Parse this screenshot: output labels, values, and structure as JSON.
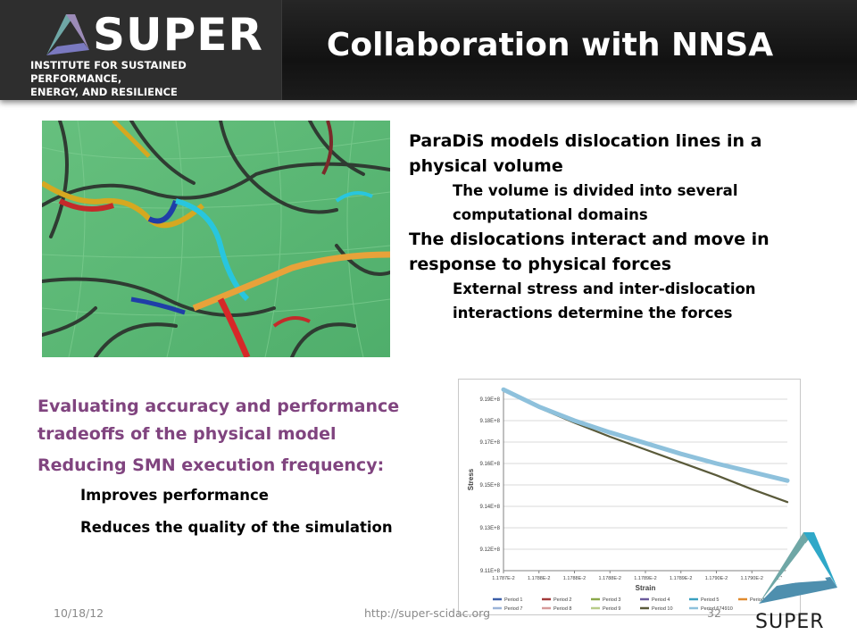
{
  "header": {
    "logo_word": "SUPER",
    "logo_subtitle_1": "INSTITUTE FOR SUSTAINED PERFORMANCE,",
    "logo_subtitle_2": "ENERGY, AND RESILIENCE",
    "title": "Collaboration with NNSA"
  },
  "right_text": {
    "b1": "ParaDiS models dislocation lines in a physical volume",
    "b1_sub": "The volume is divided into several computational domains",
    "b2": "The dislocations interact and move in response to physical forces",
    "b2_sub": "External stress and inter-dislocation interactions determine the forces"
  },
  "left_text": {
    "p1": "Evaluating accuracy and performance tradeoffs of the physical model",
    "p2": "Reducing SMN execution frequency:",
    "p2_sub1": "Improves performance",
    "p2_sub2": "Reduces the quality of the simulation"
  },
  "footer": {
    "date": "10/18/12",
    "url": "http://super-scidac.org",
    "page": "32"
  },
  "corner_logo_word": "SUPER",
  "colors": {
    "accent_purple": "#80447f",
    "header_bg": "#1a1a1a",
    "chart_line_dark": "#5a5a3a",
    "chart_line_light": "#8ec1dc"
  },
  "chart_data": {
    "type": "line",
    "xlabel": "Strain",
    "ylabel": "Stress",
    "x_ticks": [
      "1.1787E-2",
      "1.1788E-2",
      "1.1788E-2",
      "1.1788E-2",
      "1.1789E-2",
      "1.1789E-2",
      "1.1790E-2",
      "1.1790E-2",
      "1.1791E-2"
    ],
    "y_ticks": [
      "9.19E+8",
      "9.18E+8",
      "9.17E+8",
      "9.16E+8",
      "9.15E+8",
      "9.14E+8",
      "9.13E+8",
      "9.12E+8",
      "9.11E+8"
    ],
    "ylim": [
      911000000,
      919500000
    ],
    "grid": true,
    "legend_position": "bottom",
    "legend_row1": [
      "Period 1",
      "Period 2",
      "Period 3",
      "Period 4",
      "Period 5",
      "Period 6"
    ],
    "legend_row2": [
      "Period 7",
      "Period 8",
      "Period 9",
      "Period 10",
      "Period 674910"
    ],
    "series": [
      {
        "name": "Period 1",
        "color": "#3b5ea8",
        "x": [
          0,
          1,
          2,
          3,
          4,
          5,
          6,
          7,
          8
        ],
        "y": [
          919450000,
          918600000,
          917900000,
          917250000,
          916650000,
          916050000,
          915450000,
          914800000,
          914200000
        ]
      },
      {
        "name": "Period 2",
        "color": "#a33b3b",
        "x": [
          0,
          1,
          2,
          3,
          4,
          5,
          6,
          7,
          8
        ],
        "y": [
          919450000,
          918600000,
          917900000,
          917250000,
          916650000,
          916050000,
          915450000,
          914800000,
          914200000
        ]
      },
      {
        "name": "Period 3",
        "color": "#8aa84a",
        "x": [
          0,
          1,
          2,
          3,
          4,
          5,
          6,
          7,
          8
        ],
        "y": [
          919450000,
          918600000,
          917900000,
          917250000,
          916650000,
          916050000,
          915450000,
          914800000,
          914200000
        ]
      },
      {
        "name": "Period 4",
        "color": "#6b5a9c",
        "x": [
          0,
          1,
          2,
          3,
          4,
          5,
          6,
          7,
          8
        ],
        "y": [
          919450000,
          918600000,
          917900000,
          917250000,
          916650000,
          916050000,
          915450000,
          914800000,
          914200000
        ]
      },
      {
        "name": "Period 5",
        "color": "#3aa0c0",
        "x": [
          0,
          1,
          2,
          3,
          4,
          5,
          6,
          7,
          8
        ],
        "y": [
          919450000,
          918600000,
          917900000,
          917250000,
          916650000,
          916050000,
          915450000,
          914800000,
          914200000
        ]
      },
      {
        "name": "Period 6",
        "color": "#e08a2e",
        "x": [
          0,
          1,
          2,
          3,
          4,
          5,
          6,
          7,
          8
        ],
        "y": [
          919450000,
          918600000,
          917900000,
          917250000,
          916650000,
          916050000,
          915450000,
          914800000,
          914200000
        ]
      },
      {
        "name": "Period 7",
        "color": "#9cb4d8",
        "x": [
          0,
          1,
          2,
          3,
          4,
          5,
          6,
          7,
          8
        ],
        "y": [
          919450000,
          918600000,
          917900000,
          917250000,
          916650000,
          916050000,
          915450000,
          914800000,
          914200000
        ]
      },
      {
        "name": "Period 8",
        "color": "#d69a9a",
        "x": [
          0,
          1,
          2,
          3,
          4,
          5,
          6,
          7,
          8
        ],
        "y": [
          919450000,
          918600000,
          917900000,
          917250000,
          916650000,
          916050000,
          915450000,
          914800000,
          914200000
        ]
      },
      {
        "name": "Period 9",
        "color": "#b8cc8a",
        "x": [
          0,
          1,
          2,
          3,
          4,
          5,
          6,
          7,
          8
        ],
        "y": [
          919450000,
          918600000,
          917900000,
          917250000,
          916650000,
          916050000,
          915450000,
          914800000,
          914200000
        ]
      },
      {
        "name": "Period 10",
        "color": "#5a5a3a",
        "x": [
          0,
          1,
          2,
          3,
          4,
          5,
          6,
          7,
          8
        ],
        "y": [
          919450000,
          918600000,
          917900000,
          917250000,
          916650000,
          916050000,
          915450000,
          914800000,
          914200000
        ]
      },
      {
        "name": "Period 674910",
        "color": "#8ec1dc",
        "x": [
          0,
          1,
          2,
          3,
          4,
          5,
          6,
          7,
          8
        ],
        "y": [
          919450000,
          918650000,
          918000000,
          917450000,
          916950000,
          916450000,
          916000000,
          915600000,
          915200000
        ]
      }
    ]
  }
}
